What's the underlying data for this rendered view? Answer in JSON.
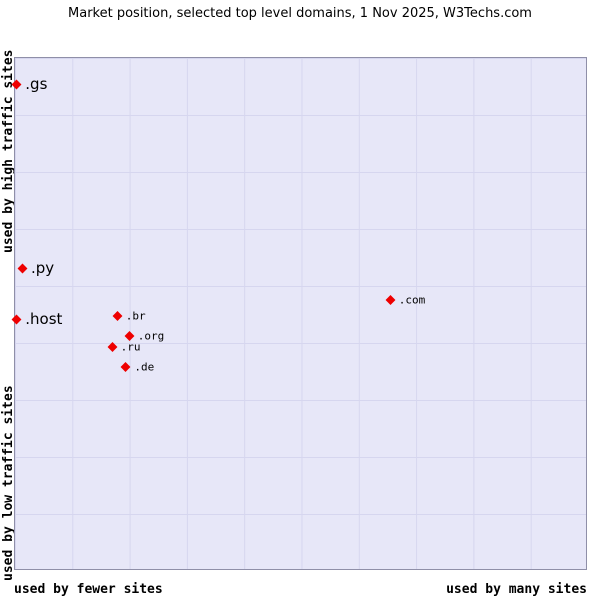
{
  "chart_data": {
    "type": "scatter",
    "title": "Market position, selected top level domains, 1 Nov 2025, W3Techs.com",
    "x_axis": {
      "left_label": "used by fewer sites",
      "right_label": "used by many sites"
    },
    "y_axis": {
      "top_label": "used by high traffic sites",
      "bottom_label": "used by low traffic sites"
    },
    "marker_color": "#ee0000",
    "plot_background": "#e7e7f8",
    "grid": true,
    "points": [
      {
        "label": ".gs",
        "x_pct": 0.4,
        "y_pct": 5.1,
        "size": "large"
      },
      {
        "label": ".py",
        "x_pct": 1.4,
        "y_pct": 41.1,
        "size": "large"
      },
      {
        "label": ".host",
        "x_pct": 0.4,
        "y_pct": 51.1,
        "size": "large"
      },
      {
        "label": ".br",
        "x_pct": 18.0,
        "y_pct": 50.5,
        "size": "small"
      },
      {
        "label": ".org",
        "x_pct": 20.1,
        "y_pct": 54.4,
        "size": "small"
      },
      {
        "label": ".ru",
        "x_pct": 17.1,
        "y_pct": 56.5,
        "size": "small"
      },
      {
        "label": ".de",
        "x_pct": 19.5,
        "y_pct": 60.4,
        "size": "small"
      },
      {
        "label": ".com",
        "x_pct": 65.8,
        "y_pct": 47.4,
        "size": "small"
      }
    ]
  }
}
